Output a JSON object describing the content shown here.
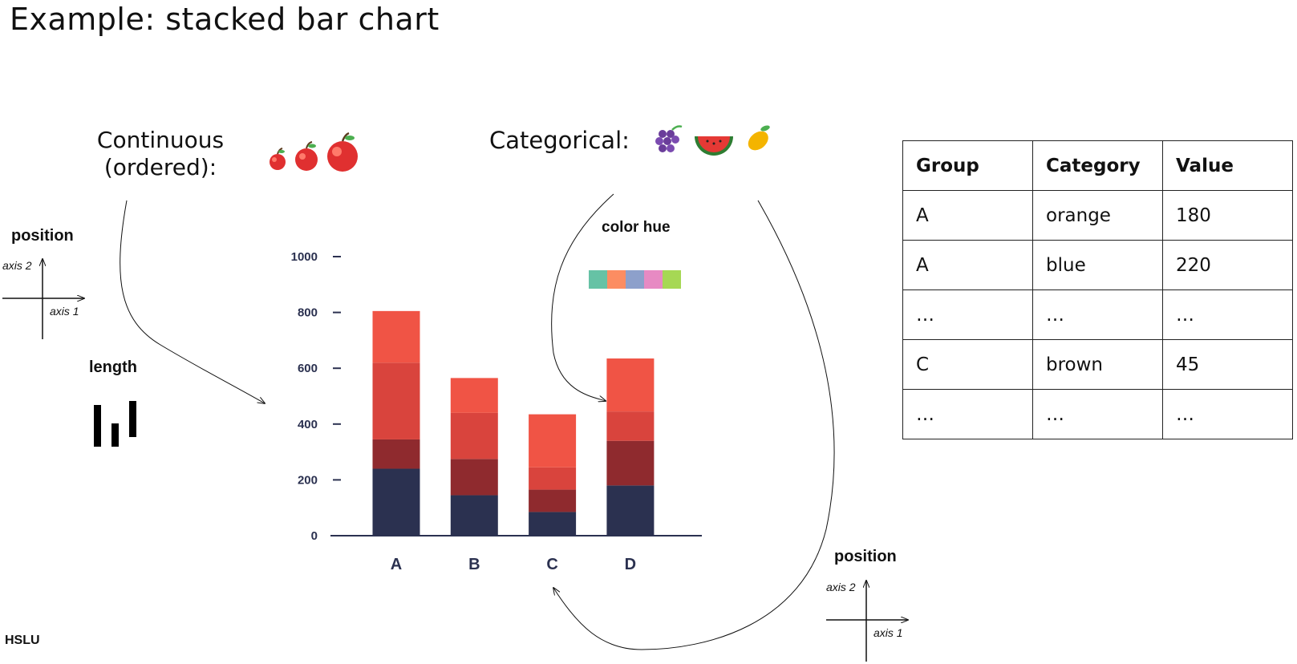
{
  "slide": {
    "title": "Example: stacked bar chart",
    "footer_logo": "HSLU"
  },
  "encodings": {
    "continuous_label_line1": "Continuous",
    "continuous_label_line2": "(ordered):",
    "categorical_label": "Categorical:",
    "left_position_label": "position",
    "left_axis2": "axis 2",
    "left_axis1": "axis 1",
    "length_label": "length",
    "color_hue_label": "color hue",
    "color_hue_swatches": [
      "#66c2a5",
      "#fc8d62",
      "#8da0cb",
      "#e78ac3",
      "#a6d854"
    ],
    "right_position_label": "position",
    "right_axis2": "axis 2",
    "right_axis1": "axis 1",
    "continuous_icons": [
      "apple-small-icon",
      "apple-medium-icon",
      "apple-large-icon"
    ],
    "categorical_icons": [
      "grapes-icon",
      "watermelon-icon",
      "mango-icon"
    ]
  },
  "table": {
    "headers": [
      "Group",
      "Category",
      "Value"
    ],
    "rows": [
      [
        "A",
        "orange",
        "180"
      ],
      [
        "A",
        "blue",
        "220"
      ],
      [
        "…",
        "…",
        "…"
      ],
      [
        "C",
        "brown",
        "45"
      ],
      [
        "…",
        "…",
        "…"
      ]
    ]
  },
  "chart_data": {
    "type": "bar",
    "stacked": true,
    "categories": [
      "A",
      "B",
      "C",
      "D"
    ],
    "ylim": [
      0,
      1000
    ],
    "yticks": [
      0,
      200,
      400,
      600,
      800,
      1000
    ],
    "series": [
      {
        "color": "#2b3150",
        "values": [
          240,
          145,
          85,
          180
        ]
      },
      {
        "color": "#8f2a2e",
        "values": [
          105,
          130,
          80,
          160
        ]
      },
      {
        "color": "#d9443d",
        "values": [
          275,
          165,
          80,
          105
        ]
      },
      {
        "color": "#f05445",
        "values": [
          185,
          125,
          190,
          190
        ]
      }
    ],
    "grid": false
  }
}
